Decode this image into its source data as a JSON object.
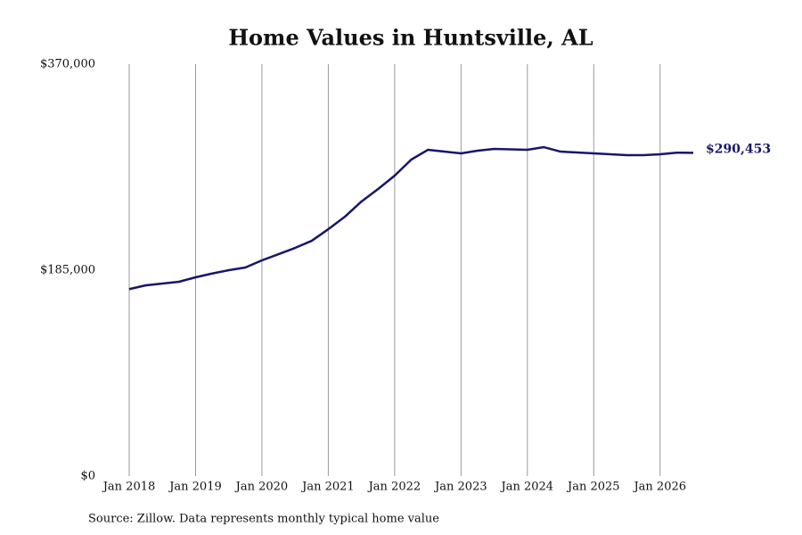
{
  "chart_data": {
    "type": "line",
    "title": "Home Values in Huntsville, AL",
    "source": "Source: Zillow. Data represents monthly typical home value",
    "color": "#16166b",
    "grid": true,
    "x": [
      "2018-01",
      "2018-04",
      "2018-07",
      "2018-10",
      "2019-01",
      "2019-04",
      "2019-07",
      "2019-10",
      "2020-01",
      "2020-04",
      "2020-07",
      "2020-10",
      "2021-01",
      "2021-04",
      "2021-07",
      "2021-10",
      "2022-01",
      "2022-04",
      "2022-07",
      "2022-10",
      "2023-01",
      "2023-04",
      "2023-07",
      "2023-10",
      "2024-01",
      "2024-04",
      "2024-07",
      "2024-10",
      "2025-01",
      "2025-04",
      "2025-07",
      "2025-10",
      "2026-01",
      "2026-04",
      "2026-07"
    ],
    "values": [
      168000,
      171400,
      173000,
      174600,
      178600,
      182000,
      185000,
      187400,
      193800,
      199400,
      205000,
      211400,
      221800,
      233000,
      246700,
      257900,
      269900,
      284300,
      293100,
      291500,
      289900,
      292300,
      293900,
      293500,
      293100,
      295500,
      291500,
      290700,
      289900,
      289100,
      288300,
      288300,
      289100,
      290500,
      290453
    ],
    "value_labels": [
      null,
      null,
      null,
      null,
      null,
      null,
      null,
      null,
      null,
      null,
      null,
      null,
      null,
      null,
      null,
      null,
      null,
      null,
      null,
      null,
      null,
      null,
      null,
      null,
      null,
      null,
      null,
      null,
      null,
      null,
      null,
      null,
      null,
      null,
      "$290,453"
    ],
    "xlim": [
      "2018-01",
      "2026-07"
    ],
    "xticks": [
      {
        "value": "2018-01",
        "label": "Jan 2018"
      },
      {
        "value": "2019-01",
        "label": "Jan 2019"
      },
      {
        "value": "2020-01",
        "label": "Jan 2020"
      },
      {
        "value": "2021-01",
        "label": "Jan 2021"
      },
      {
        "value": "2022-01",
        "label": "Jan 2022"
      },
      {
        "value": "2023-01",
        "label": "Jan 2023"
      },
      {
        "value": "2024-01",
        "label": "Jan 2024"
      },
      {
        "value": "2025-01",
        "label": "Jan 2025"
      },
      {
        "value": "2026-01",
        "label": "Jan 2026"
      }
    ],
    "ylim": [
      0,
      370000
    ],
    "yticks": [
      {
        "value": 0,
        "label": "$0"
      },
      {
        "value": 185000,
        "label": "$185,000"
      },
      {
        "value": 370000,
        "label": "$370,000"
      }
    ]
  }
}
